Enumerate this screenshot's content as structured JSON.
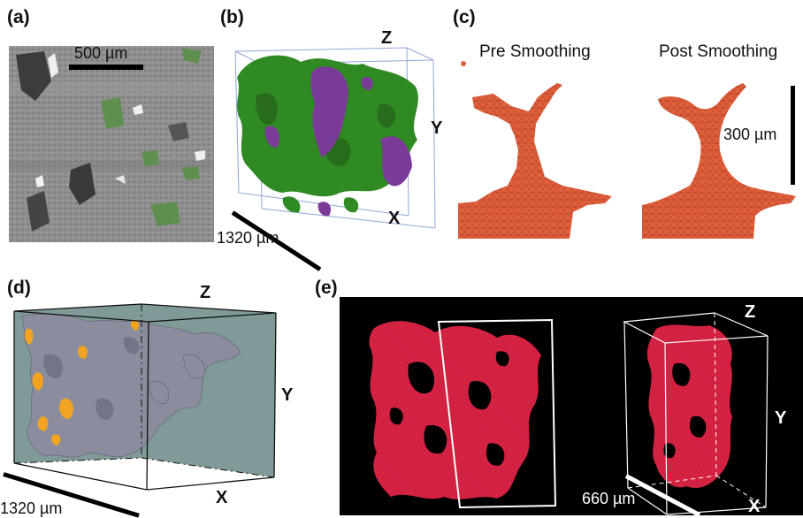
{
  "panels": {
    "a": {
      "label": "(a)",
      "scale_bar": "500 µm",
      "colors": {
        "matrix": "#8d8d8d",
        "dark_pores": "#3c3c3c",
        "phase": "#5e8f4f",
        "bright": "#f2f2f2"
      }
    },
    "b": {
      "label": "(b)",
      "axis_z": "Z",
      "axis_y": "Y",
      "axis_x": "X",
      "scale_bar": "1320 µm",
      "colors": {
        "phase_green": "#2f8a23",
        "phase_purple": "#7a3a98",
        "box": "#8fa6d8"
      }
    },
    "c": {
      "label": "(c)",
      "left_title": "Pre Smoothing",
      "right_title": "Post Smoothing",
      "scale_bar": "300 µm",
      "colors": {
        "mesh": "#e0603c",
        "mesh_dark": "#a83b22"
      }
    },
    "d": {
      "label": "(d)",
      "axis_z": "Z",
      "axis_y": "Y",
      "axis_x": "X",
      "scale_bar": "1320 µm",
      "colors": {
        "volume": "#7f9a98",
        "network": "#8b8d9e",
        "highlight": "#f2a420"
      }
    },
    "e": {
      "label": "(e)",
      "axis_z": "Z",
      "axis_y": "Y",
      "axis_x": "X",
      "scale_bar": "660 µm",
      "colors": {
        "background": "#000000",
        "network": "#e0213a",
        "wire": "#3a2aa0",
        "frame": "#ffffff"
      }
    }
  }
}
